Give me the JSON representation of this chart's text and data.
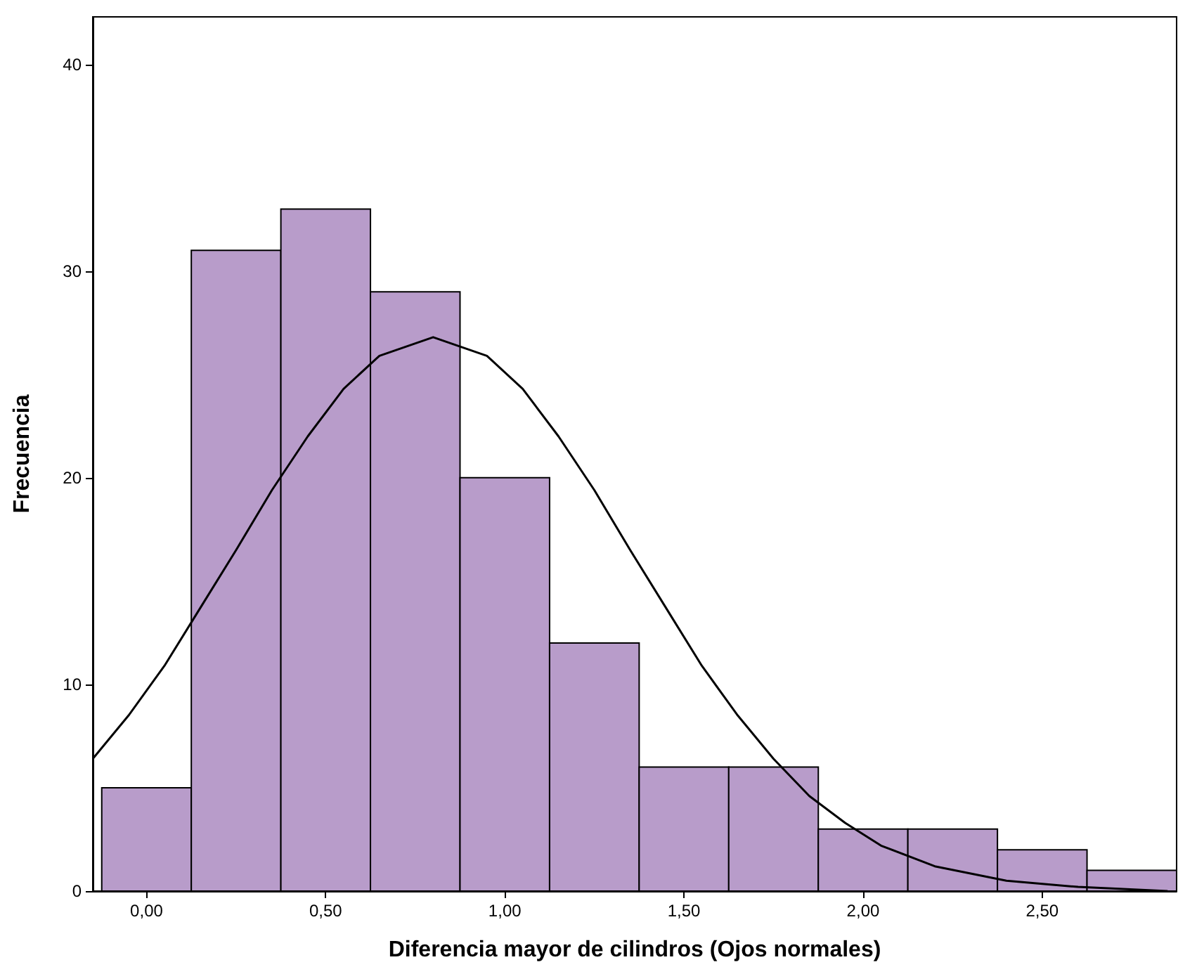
{
  "chart_data": {
    "type": "histogram",
    "xlabel": "Diferencia mayor de cilindros (Ojos normales)",
    "ylabel": "Frecuencia",
    "bins": [
      -0.125,
      0.125,
      0.375,
      0.625,
      0.875,
      1.125,
      1.375,
      1.625,
      1.875,
      2.125,
      2.375,
      2.625,
      2.875
    ],
    "values": [
      5,
      31,
      33,
      29,
      20,
      12,
      6,
      6,
      3,
      3,
      2,
      1
    ],
    "color": "#b89cca",
    "series": [
      {
        "type": "line",
        "color": "#000000",
        "x": [
          -0.15,
          -0.05,
          0.05,
          0.15,
          0.25,
          0.35,
          0.45,
          0.55,
          0.65,
          0.8,
          0.95,
          1.05,
          1.15,
          1.25,
          1.35,
          1.45,
          1.55,
          1.65,
          1.75,
          1.85,
          1.95,
          2.05,
          2.2,
          2.4,
          2.6,
          2.85
        ],
        "values": [
          6.4,
          8.5,
          10.9,
          13.7,
          16.5,
          19.4,
          22.0,
          24.3,
          25.9,
          26.8,
          25.9,
          24.3,
          22.0,
          19.4,
          16.5,
          13.7,
          10.9,
          8.5,
          6.4,
          4.6,
          3.3,
          2.2,
          1.2,
          0.5,
          0.2,
          0.0
        ]
      }
    ],
    "xlim": [
      -0.15,
      2.875
    ],
    "ylim": [
      0,
      42.3
    ],
    "xticks": [
      {
        "value": 0,
        "label": "0,00"
      },
      {
        "value": 0.5,
        "label": "0,50"
      },
      {
        "value": 1,
        "label": "1,00"
      },
      {
        "value": 1.5,
        "label": "1,50"
      },
      {
        "value": 2,
        "label": "2,00"
      },
      {
        "value": 2.5,
        "label": "2,50"
      }
    ],
    "yticks": [
      0,
      10,
      20,
      30,
      40
    ],
    "grid": false,
    "marker": "none",
    "line_style": "solid"
  }
}
